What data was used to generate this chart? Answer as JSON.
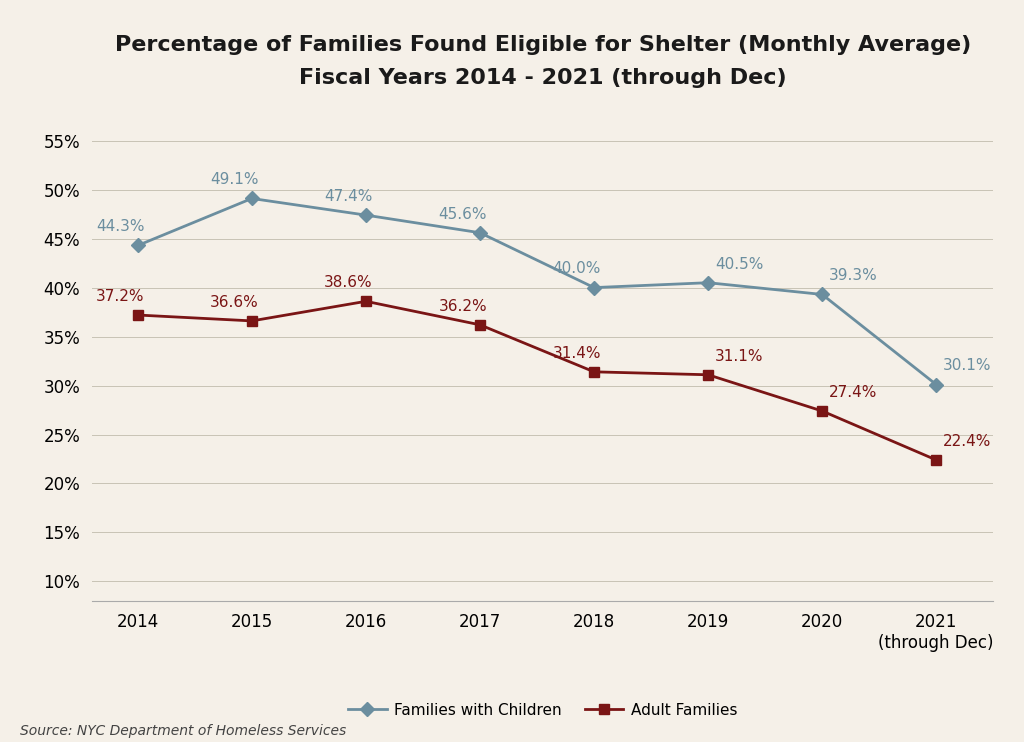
{
  "title_line1": "Percentage of Families Found Eligible for Shelter (Monthly Average)",
  "title_line2": "Fiscal Years 2014 - 2021 (through Dec)",
  "years": [
    2014,
    2015,
    2016,
    2017,
    2018,
    2019,
    2020,
    2021
  ],
  "x_labels": [
    "2014",
    "2015",
    "2016",
    "2017",
    "2018",
    "2019",
    "2020",
    "2021\n(through Dec)"
  ],
  "families_with_children": [
    44.3,
    49.1,
    47.4,
    45.6,
    40.0,
    40.5,
    39.3,
    30.1
  ],
  "adult_families": [
    37.2,
    36.6,
    38.6,
    36.2,
    31.4,
    31.1,
    27.4,
    22.4
  ],
  "fwc_color": "#6b8e9f",
  "af_color": "#7a1515",
  "background_color": "#f5f0e8",
  "yticks": [
    10,
    15,
    20,
    25,
    30,
    35,
    40,
    45,
    50,
    55
  ],
  "ylim": [
    8,
    58
  ],
  "source_text": "Source: NYC Department of Homeless Services",
  "legend_fwc": "Families with Children",
  "legend_af": "Adult Families",
  "title_fontsize": 16,
  "label_fontsize": 11,
  "tick_fontsize": 12,
  "source_fontsize": 10
}
